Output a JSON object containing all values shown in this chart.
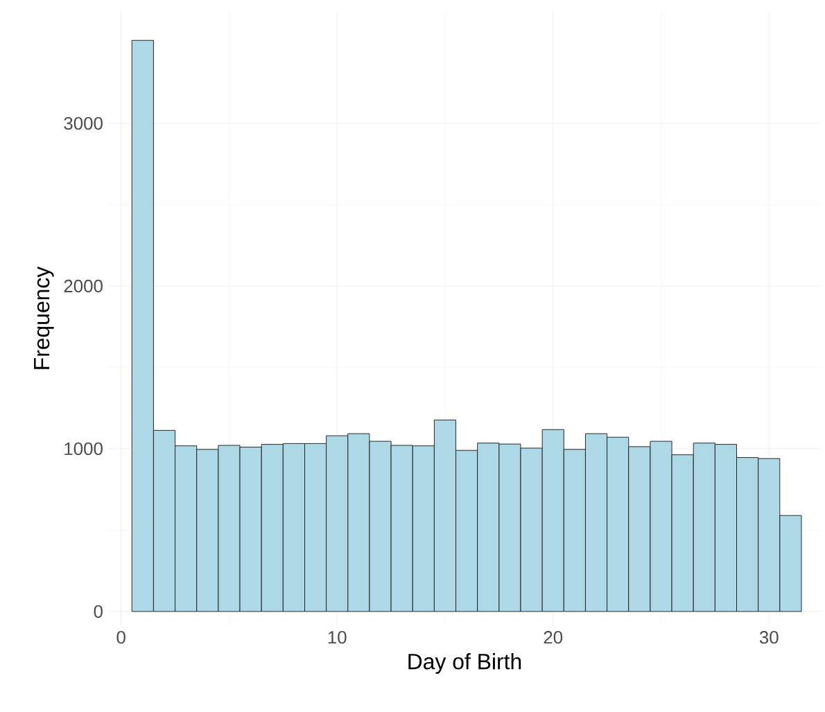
{
  "chart_data": {
    "type": "histogram",
    "xlabel": "Day of Birth",
    "ylabel": "Frequency",
    "bins": [
      0.5,
      1.5,
      2.5,
      3.5,
      4.5,
      5.5,
      6.5,
      7.5,
      8.5,
      9.5,
      10.5,
      11.5,
      12.5,
      13.5,
      14.5,
      15.5,
      16.5,
      17.5,
      18.5,
      19.5,
      20.5,
      21.5,
      22.5,
      23.5,
      24.5,
      25.5,
      26.5,
      27.5,
      28.5,
      29.5,
      30.5,
      31.5
    ],
    "values": [
      3510,
      1113,
      1018,
      996,
      1021,
      1010,
      1027,
      1032,
      1032,
      1080,
      1093,
      1046,
      1021,
      1018,
      1177,
      990,
      1035,
      1029,
      1004,
      1118,
      996,
      1093,
      1071,
      1013,
      1046,
      963,
      1035,
      1027,
      946,
      940,
      590
    ],
    "color": "#add8e6",
    "xlim": [
      -0.6,
      32.4
    ],
    "ylim": [
      -90,
      3690
    ],
    "xticks": [
      0,
      10,
      20,
      30
    ],
    "yticks": [
      0,
      1000,
      2000,
      3000
    ],
    "grid": true
  }
}
